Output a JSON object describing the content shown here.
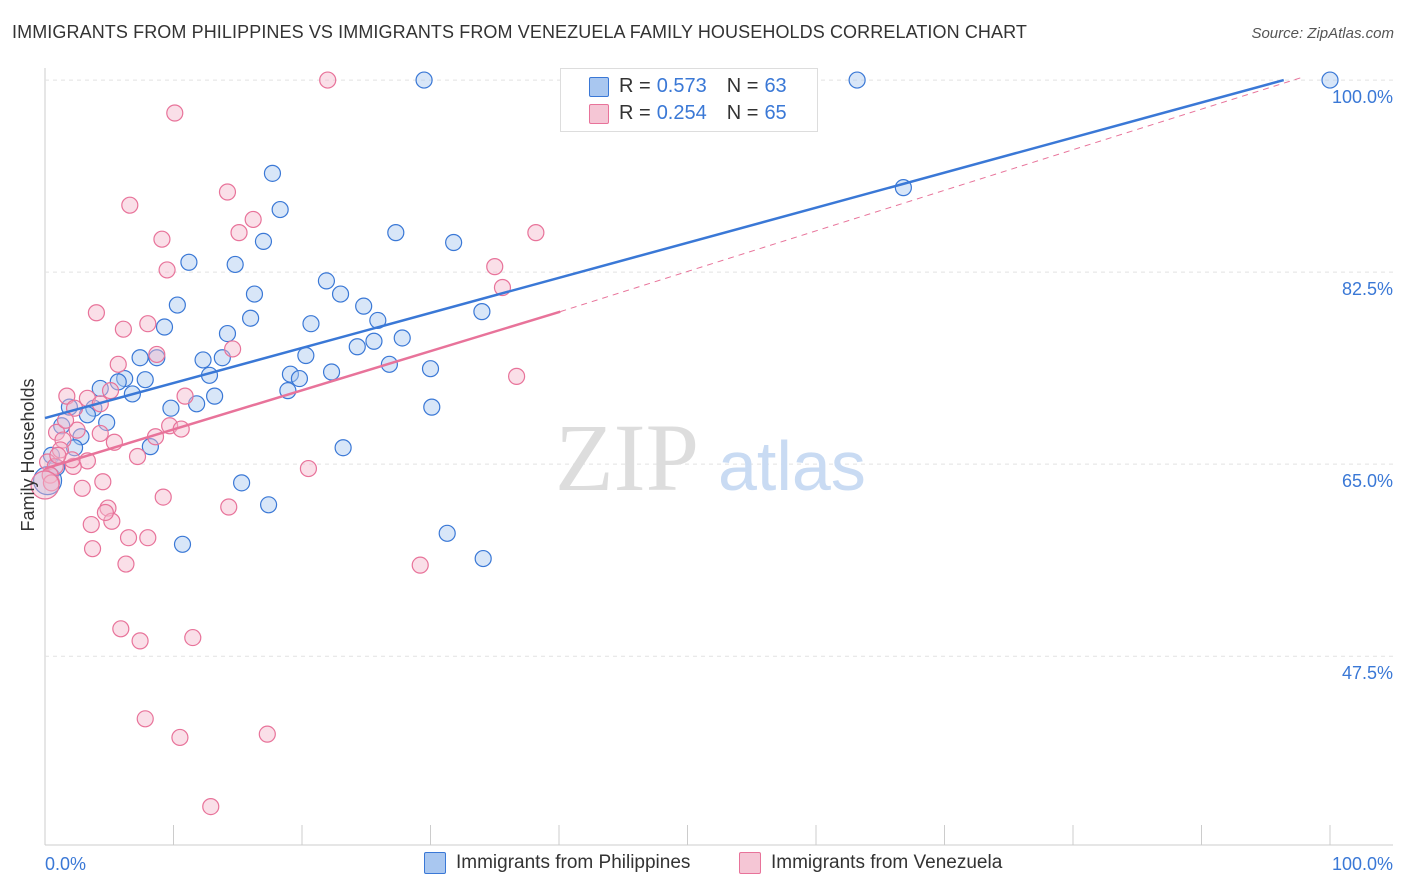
{
  "title": "IMMIGRANTS FROM PHILIPPINES VS IMMIGRANTS FROM VENEZUELA FAMILY HOUSEHOLDS CORRELATION CHART",
  "source": "Source: ZipAtlas.com",
  "colors": {
    "blue": "#3a78d6",
    "pink": "#e8739a",
    "blue_fill": "#a9c7f0",
    "pink_fill": "#f5b8cb"
  },
  "legend": {
    "blue": {
      "r_label": "R =",
      "r": "0.573",
      "n_label": "N =",
      "n": "63"
    },
    "pink": {
      "r_label": "R =",
      "r": "0.254",
      "n_label": "N =",
      "n": "65"
    }
  },
  "chart_data": {
    "type": "scatter",
    "title": "IMMIGRANTS FROM PHILIPPINES VS IMMIGRANTS FROM VENEZUELA FAMILY HOUSEHOLDS CORRELATION CHART",
    "xlabel": "",
    "ylabel": "Family Households",
    "xlim": [
      0,
      100
    ],
    "ylim": [
      30.3,
      101.1
    ],
    "x_tick_labels": [
      "0.0%",
      "100.0%"
    ],
    "y_ticks": [
      100,
      82.5,
      65,
      47.5
    ],
    "y_tick_labels": [
      "100.0%",
      "82.5%",
      "65.0%",
      "47.5%"
    ],
    "series": [
      {
        "name": "Immigrants from Philippines",
        "color": "#3a78d6",
        "trend": {
          "x0": 0,
          "y0": 69.2,
          "x1": 96.4,
          "y1": 100
        },
        "points": [
          [
            29.5,
            100
          ],
          [
            63.2,
            100
          ],
          [
            100,
            100
          ],
          [
            17.7,
            91.5
          ],
          [
            18.3,
            88.2
          ],
          [
            66.8,
            90.2
          ],
          [
            27.3,
            86.1
          ],
          [
            31.8,
            85.2
          ],
          [
            17.0,
            85.3
          ],
          [
            11.2,
            83.4
          ],
          [
            14.8,
            83.2
          ],
          [
            21.9,
            81.7
          ],
          [
            16.3,
            80.5
          ],
          [
            23.0,
            80.5
          ],
          [
            10.3,
            79.5
          ],
          [
            24.8,
            79.4
          ],
          [
            16.0,
            78.3
          ],
          [
            25.9,
            78.1
          ],
          [
            9.3,
            77.5
          ],
          [
            20.7,
            77.8
          ],
          [
            14.2,
            76.9
          ],
          [
            34.0,
            78.9
          ],
          [
            27.8,
            76.5
          ],
          [
            25.6,
            76.2
          ],
          [
            24.3,
            75.7
          ],
          [
            7.4,
            74.7
          ],
          [
            8.7,
            74.7
          ],
          [
            20.3,
            74.9
          ],
          [
            12.3,
            74.5
          ],
          [
            13.8,
            74.7
          ],
          [
            26.8,
            74.1
          ],
          [
            30.0,
            73.7
          ],
          [
            12.8,
            73.1
          ],
          [
            19.1,
            73.2
          ],
          [
            22.3,
            73.4
          ],
          [
            19.8,
            72.8
          ],
          [
            6.2,
            72.8
          ],
          [
            7.8,
            72.7
          ],
          [
            5.7,
            72.5
          ],
          [
            4.3,
            71.9
          ],
          [
            18.9,
            71.7
          ],
          [
            6.8,
            71.4
          ],
          [
            13.2,
            71.2
          ],
          [
            11.8,
            70.5
          ],
          [
            9.8,
            70.1
          ],
          [
            30.1,
            70.2
          ],
          [
            1.9,
            70.2
          ],
          [
            3.8,
            70.1
          ],
          [
            3.3,
            69.5
          ],
          [
            4.8,
            68.8
          ],
          [
            1.3,
            68.5
          ],
          [
            2.8,
            67.5
          ],
          [
            2.3,
            66.5
          ],
          [
            8.2,
            66.6
          ],
          [
            23.2,
            66.5
          ],
          [
            0.5,
            65.8
          ],
          [
            0.2,
            63.5
          ],
          [
            15.3,
            63.3
          ],
          [
            17.4,
            61.3
          ],
          [
            10.7,
            57.7
          ],
          [
            31.3,
            58.7
          ],
          [
            34.1,
            56.4
          ],
          [
            0.9,
            64.7
          ]
        ]
      },
      {
        "name": "Immigrants from Venezuela",
        "color": "#e8739a",
        "trend": {
          "x0": 0,
          "y0": 64.6,
          "x1": 40.1,
          "y1": 78.9,
          "dash_x1": 97.7,
          "dash_y1": 100.2
        },
        "points": [
          [
            22.0,
            100
          ],
          [
            10.1,
            97.0
          ],
          [
            14.2,
            89.8
          ],
          [
            6.6,
            88.6
          ],
          [
            16.2,
            87.3
          ],
          [
            15.1,
            86.1
          ],
          [
            9.1,
            85.5
          ],
          [
            9.5,
            82.7
          ],
          [
            35.0,
            83.0
          ],
          [
            35.6,
            81.1
          ],
          [
            38.2,
            86.1
          ],
          [
            4.0,
            78.8
          ],
          [
            8.0,
            77.8
          ],
          [
            6.1,
            77.3
          ],
          [
            14.6,
            75.5
          ],
          [
            8.7,
            75.0
          ],
          [
            5.7,
            74.1
          ],
          [
            36.7,
            73.0
          ],
          [
            1.7,
            71.2
          ],
          [
            5.1,
            71.7
          ],
          [
            3.3,
            71.0
          ],
          [
            10.9,
            71.2
          ],
          [
            2.3,
            70.1
          ],
          [
            4.3,
            70.5
          ],
          [
            9.7,
            68.5
          ],
          [
            10.6,
            68.2
          ],
          [
            0.9,
            67.9
          ],
          [
            2.5,
            68.1
          ],
          [
            8.6,
            67.5
          ],
          [
            4.3,
            67.8
          ],
          [
            5.4,
            67.0
          ],
          [
            1.4,
            67.2
          ],
          [
            7.2,
            65.7
          ],
          [
            3.3,
            65.3
          ],
          [
            2.2,
            64.8
          ],
          [
            0.2,
            65.2
          ],
          [
            0.8,
            64.8
          ],
          [
            20.5,
            64.6
          ],
          [
            0.4,
            64.0
          ],
          [
            4.5,
            63.4
          ],
          [
            2.9,
            62.8
          ],
          [
            0.5,
            63.3
          ],
          [
            9.2,
            62.0
          ],
          [
            4.9,
            61.0
          ],
          [
            14.3,
            61.1
          ],
          [
            5.2,
            59.8
          ],
          [
            3.6,
            59.5
          ],
          [
            6.5,
            58.3
          ],
          [
            8.0,
            58.3
          ],
          [
            3.7,
            57.3
          ],
          [
            6.3,
            55.9
          ],
          [
            29.2,
            55.8
          ],
          [
            5.9,
            50.0
          ],
          [
            7.4,
            48.9
          ],
          [
            11.5,
            49.2
          ],
          [
            7.8,
            41.8
          ],
          [
            10.5,
            40.1
          ],
          [
            17.3,
            40.4
          ],
          [
            12.9,
            33.8
          ],
          [
            1.2,
            66.3
          ],
          [
            1.6,
            69.0
          ],
          [
            0,
            63.1
          ],
          [
            2.1,
            65.4
          ],
          [
            4.7,
            60.6
          ],
          [
            1.0,
            65.8
          ]
        ]
      }
    ]
  }
}
